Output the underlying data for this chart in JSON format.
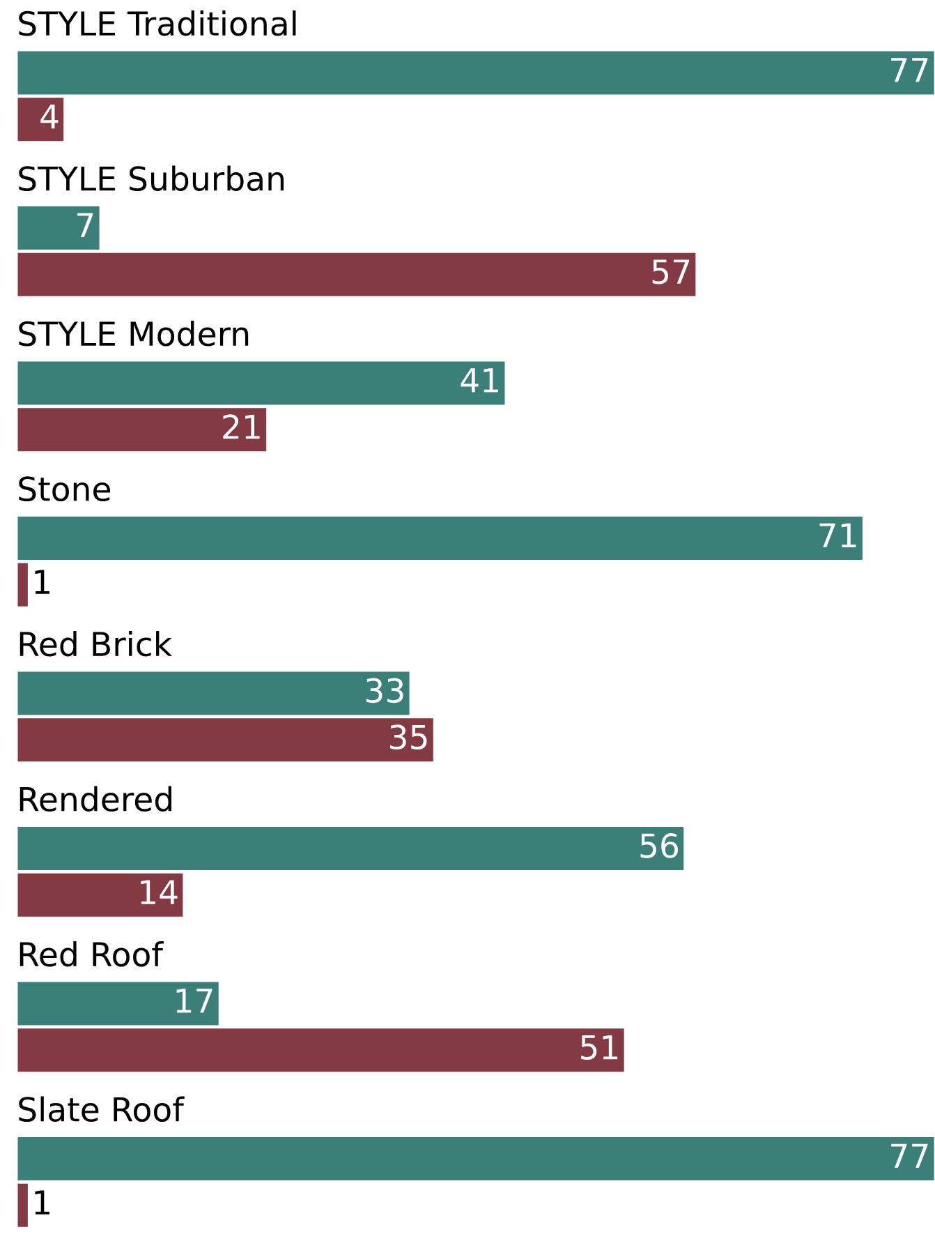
{
  "chart_data": {
    "type": "bar",
    "orientation": "horizontal",
    "categories": [
      "STYLE Traditional",
      "STYLE Suburban",
      "STYLE Modern",
      "Stone",
      "Red Brick",
      "Rendered",
      "Red Roof",
      "Slate Roof"
    ],
    "series": [
      {
        "color": "#3a7f78",
        "values": [
          77,
          7,
          41,
          71,
          33,
          56,
          17,
          77
        ]
      },
      {
        "color": "#833a43",
        "values": [
          4,
          57,
          21,
          1,
          35,
          14,
          51,
          1
        ]
      }
    ],
    "xlim": [
      0,
      77
    ],
    "data_labels": true
  }
}
